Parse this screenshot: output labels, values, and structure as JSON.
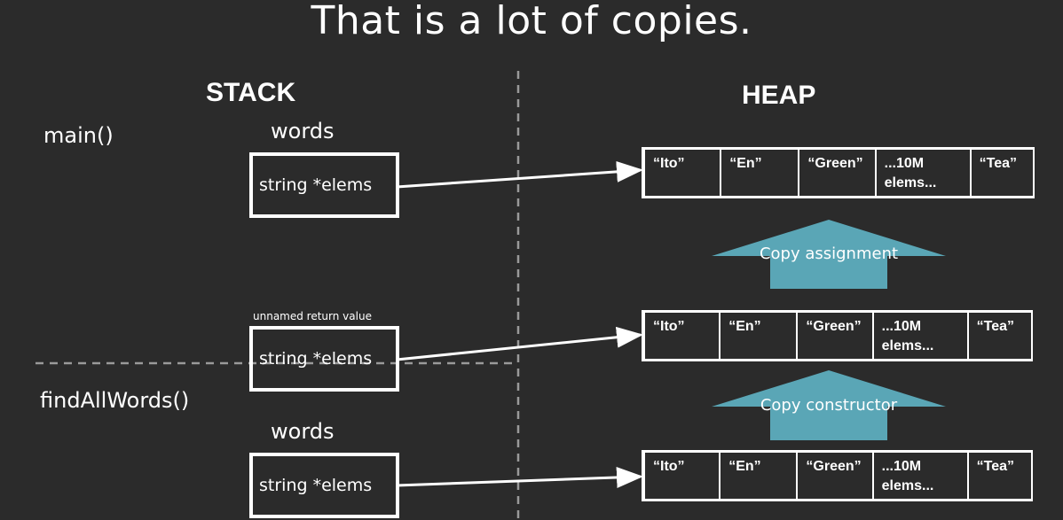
{
  "title": "That is a lot of copies.",
  "stack_label": "STACK",
  "heap_label": "HEAP",
  "functions": {
    "main": "main()",
    "find": "findAllWords()"
  },
  "vars": {
    "words_top": "words",
    "unnamed": "unnamed return value",
    "words_bottom": "words"
  },
  "boxes": {
    "b1": "string *elems",
    "b2": "string *elems",
    "b3": "string *elems"
  },
  "arrays": [
    {
      "cells": [
        "“Ito”",
        "“En”",
        "“Green”",
        "...10M elems...",
        "“Tea”"
      ]
    },
    {
      "cells": [
        "“Ito”",
        "“En”",
        "“Green”",
        "...10M elems...",
        "“Tea”"
      ]
    },
    {
      "cells": [
        "“Ito”",
        "“En”",
        "“Green”",
        "...10M elems...",
        "“Tea”"
      ]
    }
  ],
  "copy_arrows": {
    "assignment": "Copy assignment",
    "constructor": "Copy constructor"
  },
  "colors": {
    "background": "#2b2b2b",
    "copy_arrow": "#5aa6b6",
    "dashed": "#9a9a9a"
  }
}
